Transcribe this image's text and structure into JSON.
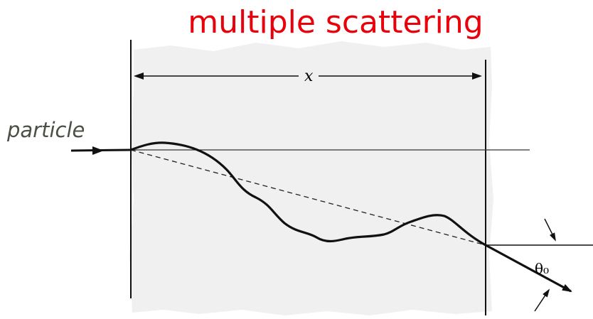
{
  "title": "multiple scattering",
  "particle_label": "particle",
  "thickness_label": "x",
  "angle_label": "θ₀",
  "colors": {
    "title": "#e8000b",
    "particle_label": "#4b5044",
    "material": "#f0f0f0",
    "lines": "#111111"
  }
}
